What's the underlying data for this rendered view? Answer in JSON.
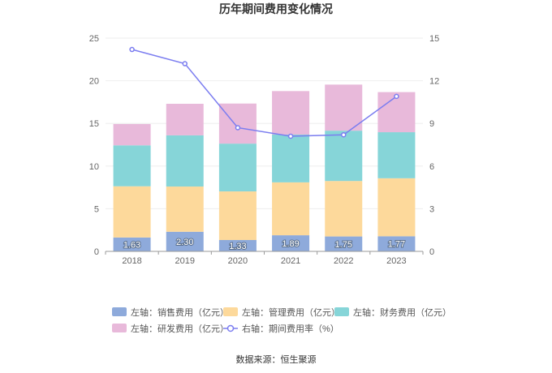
{
  "chart_data": {
    "type": "bar",
    "title": "历年期间费用变化情况",
    "categories": [
      "2018",
      "2019",
      "2020",
      "2021",
      "2022",
      "2023"
    ],
    "series": [
      {
        "name": "左轴：销售费用（亿元）",
        "axis": "left",
        "color": "#8eaadb",
        "values": [
          1.63,
          2.3,
          1.33,
          1.89,
          1.75,
          1.77
        ],
        "show_labels": true
      },
      {
        "name": "左轴：管理费用（亿元）",
        "axis": "left",
        "color": "#fdd99b",
        "values": [
          6.0,
          5.3,
          5.7,
          6.2,
          6.5,
          6.8
        ],
        "show_labels": false
      },
      {
        "name": "左轴：财务费用（亿元）",
        "axis": "left",
        "color": "#86d5d8",
        "values": [
          4.8,
          6.0,
          5.6,
          5.6,
          5.9,
          5.4
        ],
        "show_labels": false
      },
      {
        "name": "左轴：研发费用（亿元）",
        "axis": "left",
        "color": "#e8b9da",
        "values": [
          2.5,
          3.7,
          4.7,
          5.1,
          5.4,
          4.7
        ],
        "show_labels": false
      }
    ],
    "line_series": {
      "name": "右轴：期间费用率（%）",
      "axis": "right",
      "color": "#7b7df0",
      "values": [
        14.2,
        13.2,
        8.7,
        8.1,
        8.2,
        10.9
      ]
    },
    "left_axis": {
      "ylim": [
        0,
        25
      ],
      "ticks": [
        "0",
        "5",
        "10",
        "15",
        "20",
        "25"
      ]
    },
    "right_axis": {
      "ylim": [
        0,
        15
      ],
      "ticks": [
        "0",
        "3",
        "6",
        "9",
        "12",
        "15"
      ]
    },
    "grid": true,
    "legend_position": "bottom"
  },
  "source_text": "数据来源：恒生聚源"
}
